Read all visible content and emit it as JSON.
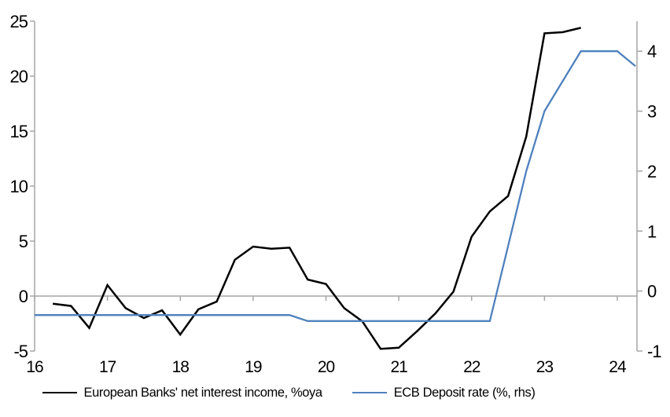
{
  "chart_data": {
    "type": "line",
    "title": "",
    "x_axis": {
      "min": 16,
      "max": 24.27,
      "tick_values": [
        16,
        17,
        18,
        19,
        20,
        21,
        22,
        23,
        24
      ],
      "tick_labels": [
        "16",
        "17",
        "18",
        "19",
        "20",
        "21",
        "22",
        "23",
        "24"
      ]
    },
    "left_axis": {
      "min": -5,
      "max": 25,
      "tick_values": [
        -5,
        0,
        5,
        10,
        15,
        20,
        25
      ],
      "tick_labels": [
        "-5",
        "0",
        "5",
        "10",
        "15",
        "20",
        "25"
      ]
    },
    "right_axis": {
      "min": -1,
      "max": 4.5,
      "tick_values": [
        -1,
        0,
        1,
        2,
        3,
        4
      ],
      "tick_labels": [
        "-1",
        "0",
        "1",
        "2",
        "3",
        "4"
      ]
    },
    "grid": {
      "zero_line": true,
      "other_gridlines": false
    },
    "legend_position": "bottom",
    "series": [
      {
        "key": "nii",
        "name": "European Banks' net interest income, %oya",
        "axis": "left",
        "color": "#000000",
        "x": [
          16.25,
          16.5,
          16.75,
          17.0,
          17.25,
          17.5,
          17.75,
          18.0,
          18.25,
          18.5,
          18.75,
          19.0,
          19.25,
          19.5,
          19.75,
          20.0,
          20.25,
          20.5,
          20.75,
          21.0,
          21.25,
          21.5,
          21.75,
          22.0,
          22.25,
          22.5,
          22.75,
          23.0,
          23.25,
          23.5
        ],
        "values": [
          -0.7,
          -0.9,
          -2.9,
          1.0,
          -1.1,
          -2.0,
          -1.3,
          -3.5,
          -1.2,
          -0.5,
          3.3,
          4.5,
          4.3,
          4.4,
          1.5,
          1.1,
          -1.1,
          -2.3,
          -4.8,
          -4.7,
          -3.2,
          -1.6,
          0.4,
          5.4,
          7.7,
          9.1,
          14.5,
          23.9,
          24.0,
          24.4
        ]
      },
      {
        "key": "ecb",
        "name": "ECB Deposit rate (%, rhs)",
        "axis": "right",
        "color": "#4f81bd",
        "x": [
          16.0,
          16.25,
          16.5,
          16.75,
          17.0,
          17.25,
          17.5,
          17.75,
          18.0,
          18.25,
          18.5,
          18.75,
          19.0,
          19.25,
          19.5,
          19.75,
          20.0,
          20.25,
          20.5,
          20.75,
          21.0,
          21.25,
          21.5,
          21.75,
          22.0,
          22.25,
          22.5,
          22.75,
          23.0,
          23.25,
          23.5,
          23.75,
          24.0,
          24.25
        ],
        "values": [
          -0.4,
          -0.4,
          -0.4,
          -0.4,
          -0.4,
          -0.4,
          -0.4,
          -0.4,
          -0.4,
          -0.4,
          -0.4,
          -0.4,
          -0.4,
          -0.4,
          -0.4,
          -0.5,
          -0.5,
          -0.5,
          -0.5,
          -0.5,
          -0.5,
          -0.5,
          -0.5,
          -0.5,
          -0.5,
          -0.5,
          0.75,
          2.0,
          3.0,
          3.5,
          4.0,
          4.0,
          4.0,
          3.75
        ]
      }
    ]
  },
  "colors": {
    "axis_line": "#a6a6a6",
    "zero_line": "#a6a6a6",
    "nii_line": "#000000",
    "ecb_line": "#4f81bd",
    "label_text": "#000000",
    "background": "#ffffff"
  }
}
